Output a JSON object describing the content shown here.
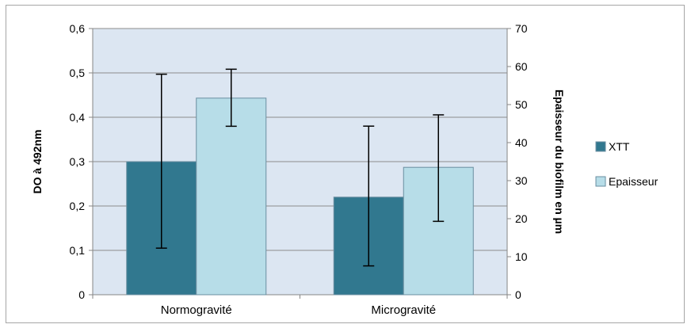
{
  "chart_data": {
    "type": "bar",
    "categories": [
      "Normogravité",
      "Microgravité"
    ],
    "series": [
      {
        "name": "XTT",
        "axis": "left",
        "color": "#31788f",
        "values": [
          0.3,
          0.22
        ],
        "error_low": [
          0.105,
          0.065
        ],
        "error_high": [
          0.497,
          0.38
        ]
      },
      {
        "name": "Epaisseur",
        "axis": "right",
        "color": "#b7dde8",
        "values": [
          51.7,
          33.5
        ],
        "error_low": [
          44.3,
          19.3
        ],
        "error_high": [
          59.3,
          47.3
        ]
      }
    ],
    "ylabel": "DO à 492nm",
    "y2label": "Epaisseur du biofilm en µm",
    "ylim": [
      0,
      0.6
    ],
    "y2lim": [
      0,
      70
    ],
    "yticks": [
      "0",
      "0,1",
      "0,2",
      "0,3",
      "0,4",
      "0,5",
      "0,6"
    ],
    "y2ticks": [
      "0",
      "10",
      "20",
      "30",
      "40",
      "50",
      "60",
      "70"
    ],
    "plot_background": "#dce6f2",
    "grid": true,
    "legend_position": "right"
  }
}
